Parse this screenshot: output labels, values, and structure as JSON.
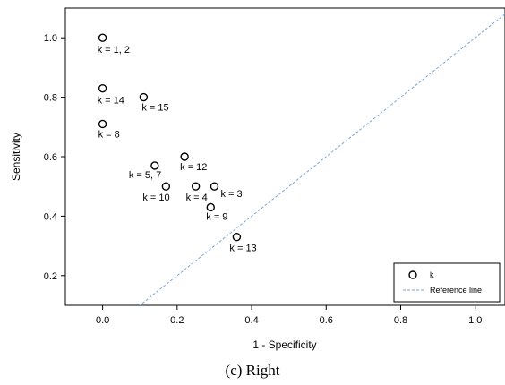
{
  "chart_data": {
    "type": "scatter",
    "xlabel": "1 - Specificity",
    "ylabel": "Sensitivity",
    "xlim": [
      -0.1,
      1.08
    ],
    "ylim": [
      0.1,
      1.1
    ],
    "x_ticks": [
      0.0,
      0.2,
      0.4,
      0.6,
      0.8,
      1.0
    ],
    "x_tick_labels": [
      "0.0",
      "0.2",
      "0.4",
      "0.6",
      "0.8",
      "1.0"
    ],
    "y_ticks": [
      0.2,
      0.4,
      0.6,
      0.8,
      1.0
    ],
    "y_tick_labels": [
      "0.2",
      "0.4",
      "0.6",
      "0.8",
      "1.0"
    ],
    "grid": false,
    "legend_position": "bottom-right",
    "series": [
      {
        "name": "k",
        "marker": "open-circle",
        "points": [
          {
            "x": 0.0,
            "y": 1.0,
            "label": "k = 1, 2"
          },
          {
            "x": 0.0,
            "y": 0.83,
            "label": "k = 14"
          },
          {
            "x": 0.11,
            "y": 0.8,
            "label": "k = 15"
          },
          {
            "x": 0.0,
            "y": 0.71,
            "label": "k = 8"
          },
          {
            "x": 0.22,
            "y": 0.6,
            "label": "k = 12"
          },
          {
            "x": 0.14,
            "y": 0.57,
            "label": "k = 5, 7"
          },
          {
            "x": 0.17,
            "y": 0.5,
            "label": "k = 10"
          },
          {
            "x": 0.25,
            "y": 0.5,
            "label": "k = 4"
          },
          {
            "x": 0.3,
            "y": 0.5,
            "label": "k = 3"
          },
          {
            "x": 0.29,
            "y": 0.43,
            "label": "k = 9"
          },
          {
            "x": 0.36,
            "y": 0.33,
            "label": "k = 13"
          }
        ]
      },
      {
        "name": "Reference line",
        "type": "line",
        "style": "dashed",
        "color": "#7ea6d8",
        "x": [
          -0.1,
          1.08
        ],
        "y": [
          -0.1,
          1.08
        ]
      }
    ]
  },
  "caption": "(c) Right"
}
